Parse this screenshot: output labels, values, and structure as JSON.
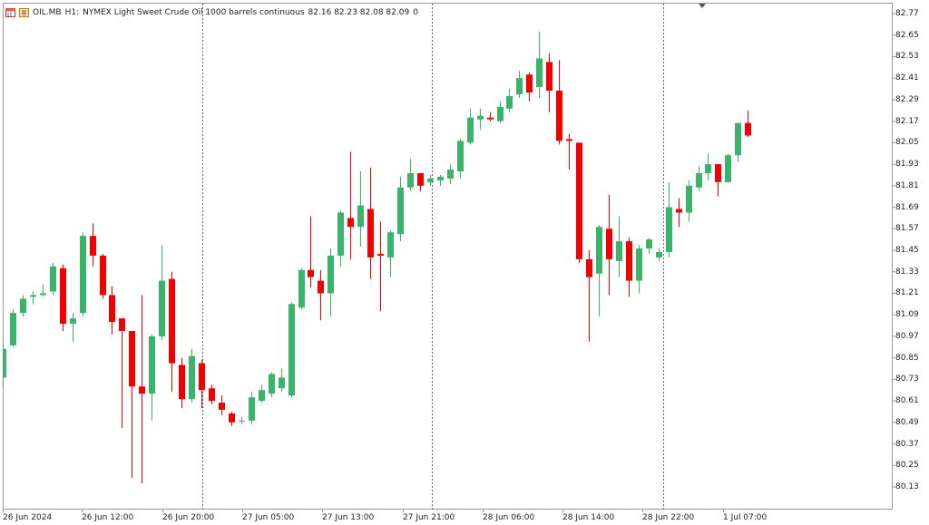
{
  "header": {
    "symbol": "OIL.MB",
    "timeframe": "H1:",
    "description": "NYMEX Light Sweet Crude Oil 1000 barrels continuous",
    "ohlc": "82.16 82.23 82.08 82.09",
    "volume": "0",
    "icons": [
      "chart-window-icon",
      "symbol-info-icon"
    ]
  },
  "colors": {
    "bull": "#3bb36b",
    "bear": "#f20000",
    "grid": "#666666",
    "axis": "#999999"
  },
  "price_axis": [
    "82.77",
    "82.65",
    "82.53",
    "82.41",
    "82.29",
    "82.17",
    "82.05",
    "81.93",
    "81.81",
    "81.69",
    "81.57",
    "81.45",
    "81.33",
    "81.21",
    "81.09",
    "80.97",
    "80.85",
    "80.73",
    "80.61",
    "80.49",
    "80.37",
    "80.25",
    "80.13"
  ],
  "time_axis": [
    "26 Jun 2024",
    "26 Jun 12:00",
    "26 Jun 20:00",
    "27 Jun 05:00",
    "27 Jun 13:00",
    "27 Jun 21:00",
    "28 Jun 06:00",
    "28 Jun 14:00",
    "28 Jun 22:00",
    "1 Jul 07:00"
  ],
  "chart_data": {
    "type": "candlestick",
    "ylim": [
      80.07,
      82.81
    ],
    "candles": [
      {
        "o": 80.74,
        "h": 80.93,
        "l": 80.68,
        "c": 80.9
      },
      {
        "o": 80.92,
        "h": 81.12,
        "l": 80.91,
        "c": 81.1
      },
      {
        "o": 81.1,
        "h": 81.2,
        "l": 81.08,
        "c": 81.18
      },
      {
        "o": 81.19,
        "h": 81.22,
        "l": 81.15,
        "c": 81.2
      },
      {
        "o": 81.2,
        "h": 81.26,
        "l": 81.19,
        "c": 81.21
      },
      {
        "o": 81.22,
        "h": 81.38,
        "l": 81.2,
        "c": 81.36
      },
      {
        "o": 81.35,
        "h": 81.37,
        "l": 81.0,
        "c": 81.04
      },
      {
        "o": 81.04,
        "h": 81.1,
        "l": 80.94,
        "c": 81.07
      },
      {
        "o": 81.1,
        "h": 81.55,
        "l": 81.08,
        "c": 81.53
      },
      {
        "o": 81.53,
        "h": 81.6,
        "l": 81.36,
        "c": 81.42
      },
      {
        "o": 81.42,
        "h": 81.43,
        "l": 81.18,
        "c": 81.2
      },
      {
        "o": 81.2,
        "h": 81.25,
        "l": 80.98,
        "c": 81.05
      },
      {
        "o": 81.07,
        "h": 81.07,
        "l": 80.46,
        "c": 81.0
      },
      {
        "o": 81.0,
        "h": 81.0,
        "l": 80.18,
        "c": 80.69
      },
      {
        "o": 80.69,
        "h": 81.2,
        "l": 80.15,
        "c": 80.65
      },
      {
        "o": 80.65,
        "h": 80.98,
        "l": 80.5,
        "c": 80.97
      },
      {
        "o": 80.97,
        "h": 81.48,
        "l": 80.95,
        "c": 81.28
      },
      {
        "o": 81.29,
        "h": 81.33,
        "l": 80.66,
        "c": 80.82
      },
      {
        "o": 80.81,
        "h": 80.85,
        "l": 80.57,
        "c": 80.62
      },
      {
        "o": 80.62,
        "h": 80.9,
        "l": 80.6,
        "c": 80.86
      },
      {
        "o": 80.82,
        "h": 80.84,
        "l": 80.57,
        "c": 80.67
      },
      {
        "o": 80.68,
        "h": 80.7,
        "l": 80.59,
        "c": 80.61
      },
      {
        "o": 80.6,
        "h": 80.64,
        "l": 80.53,
        "c": 80.56
      },
      {
        "o": 80.54,
        "h": 80.55,
        "l": 80.47,
        "c": 80.49
      },
      {
        "o": 80.5,
        "h": 80.52,
        "l": 80.48,
        "c": 80.5
      },
      {
        "o": 80.5,
        "h": 80.66,
        "l": 80.48,
        "c": 80.63
      },
      {
        "o": 80.61,
        "h": 80.7,
        "l": 80.6,
        "c": 80.67
      },
      {
        "o": 80.65,
        "h": 80.77,
        "l": 80.63,
        "c": 80.76
      },
      {
        "o": 80.68,
        "h": 80.79,
        "l": 80.66,
        "c": 80.74
      },
      {
        "o": 80.64,
        "h": 81.16,
        "l": 80.63,
        "c": 81.15
      },
      {
        "o": 81.13,
        "h": 81.35,
        "l": 81.12,
        "c": 81.34
      },
      {
        "o": 81.34,
        "h": 81.64,
        "l": 81.24,
        "c": 81.3
      },
      {
        "o": 81.28,
        "h": 81.34,
        "l": 81.06,
        "c": 81.21
      },
      {
        "o": 81.21,
        "h": 81.46,
        "l": 81.08,
        "c": 81.42
      },
      {
        "o": 81.42,
        "h": 81.67,
        "l": 81.36,
        "c": 81.66
      },
      {
        "o": 81.63,
        "h": 82.0,
        "l": 81.4,
        "c": 81.58
      },
      {
        "o": 81.58,
        "h": 81.89,
        "l": 81.47,
        "c": 81.7
      },
      {
        "o": 81.68,
        "h": 81.91,
        "l": 81.29,
        "c": 81.41
      },
      {
        "o": 81.43,
        "h": 81.61,
        "l": 81.11,
        "c": 81.42
      },
      {
        "o": 81.41,
        "h": 81.56,
        "l": 81.3,
        "c": 81.55
      },
      {
        "o": 81.54,
        "h": 81.86,
        "l": 81.5,
        "c": 81.8
      },
      {
        "o": 81.8,
        "h": 81.96,
        "l": 81.78,
        "c": 81.88
      },
      {
        "o": 81.88,
        "h": 81.88,
        "l": 81.78,
        "c": 81.81
      },
      {
        "o": 81.83,
        "h": 81.87,
        "l": 81.81,
        "c": 81.85
      },
      {
        "o": 81.84,
        "h": 81.87,
        "l": 81.81,
        "c": 81.86
      },
      {
        "o": 81.85,
        "h": 81.93,
        "l": 81.82,
        "c": 81.9
      },
      {
        "o": 81.89,
        "h": 82.07,
        "l": 81.85,
        "c": 82.06
      },
      {
        "o": 82.05,
        "h": 82.24,
        "l": 82.04,
        "c": 82.19
      },
      {
        "o": 82.18,
        "h": 82.24,
        "l": 82.12,
        "c": 82.2
      },
      {
        "o": 82.19,
        "h": 82.22,
        "l": 82.17,
        "c": 82.18
      },
      {
        "o": 82.17,
        "h": 82.28,
        "l": 82.16,
        "c": 82.25
      },
      {
        "o": 82.24,
        "h": 82.35,
        "l": 82.22,
        "c": 82.31
      },
      {
        "o": 82.32,
        "h": 82.45,
        "l": 82.3,
        "c": 82.41
      },
      {
        "o": 82.43,
        "h": 82.44,
        "l": 82.28,
        "c": 82.33
      },
      {
        "o": 82.36,
        "h": 82.67,
        "l": 82.3,
        "c": 82.52
      },
      {
        "o": 82.5,
        "h": 82.55,
        "l": 82.22,
        "c": 82.34
      },
      {
        "o": 82.34,
        "h": 82.51,
        "l": 82.04,
        "c": 82.06
      },
      {
        "o": 82.07,
        "h": 82.1,
        "l": 81.9,
        "c": 82.06
      },
      {
        "o": 82.05,
        "h": 82.05,
        "l": 81.38,
        "c": 81.4
      },
      {
        "o": 81.4,
        "h": 81.45,
        "l": 80.94,
        "c": 81.3
      },
      {
        "o": 81.32,
        "h": 81.59,
        "l": 81.08,
        "c": 81.58
      },
      {
        "o": 81.57,
        "h": 81.76,
        "l": 81.2,
        "c": 81.4
      },
      {
        "o": 81.39,
        "h": 81.64,
        "l": 81.3,
        "c": 81.5
      },
      {
        "o": 81.5,
        "h": 81.52,
        "l": 81.19,
        "c": 81.28
      },
      {
        "o": 81.28,
        "h": 81.48,
        "l": 81.21,
        "c": 81.46
      },
      {
        "o": 81.46,
        "h": 81.52,
        "l": 81.43,
        "c": 81.51
      },
      {
        "o": 81.41,
        "h": 81.46,
        "l": 81.39,
        "c": 81.44
      },
      {
        "o": 81.44,
        "h": 81.83,
        "l": 81.41,
        "c": 81.69
      },
      {
        "o": 81.68,
        "h": 81.74,
        "l": 81.58,
        "c": 81.66
      },
      {
        "o": 81.66,
        "h": 81.84,
        "l": 81.61,
        "c": 81.81
      },
      {
        "o": 81.8,
        "h": 81.92,
        "l": 81.78,
        "c": 81.88
      },
      {
        "o": 81.88,
        "h": 81.99,
        "l": 81.84,
        "c": 81.93
      },
      {
        "o": 81.93,
        "h": 81.93,
        "l": 81.75,
        "c": 81.83
      },
      {
        "o": 81.83,
        "h": 81.99,
        "l": 81.83,
        "c": 81.98
      },
      {
        "o": 81.98,
        "h": 82.16,
        "l": 81.94,
        "c": 82.16
      },
      {
        "o": 82.16,
        "h": 82.23,
        "l": 82.08,
        "c": 82.09
      }
    ]
  }
}
